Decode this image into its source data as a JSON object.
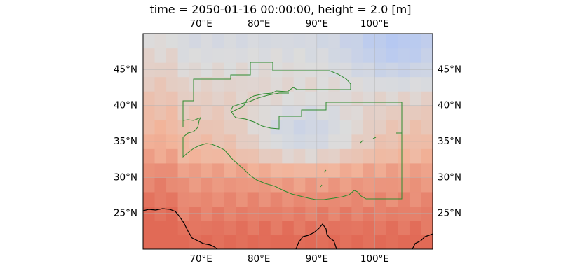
{
  "title": "time = 2050-01-16 00:00:00, height = 2.0 [m]",
  "map": {
    "extent_lon": [
      60,
      110
    ],
    "extent_lat": [
      20,
      50
    ],
    "grid_lon_step": 2.5,
    "grid_lat_step": 2.5,
    "gridlines": true,
    "coastline_color": "#000000",
    "boundary_color": "#2e8b2e",
    "colormap": "coolwarm",
    "colors": {
      "cold": "#9ebcff",
      "neutral": "#dcdcdc",
      "warm_light": "#f2b49a",
      "warm_dark": "#e16a56"
    }
  },
  "axes": {
    "lon_ticks": [
      {
        "value": 70,
        "label": "70°E"
      },
      {
        "value": 80,
        "label": "80°E"
      },
      {
        "value": 90,
        "label": "90°E"
      },
      {
        "value": 100,
        "label": "100°E"
      }
    ],
    "lat_ticks": [
      {
        "value": 45,
        "label": "45°N"
      },
      {
        "value": 40,
        "label": "40°N"
      },
      {
        "value": 35,
        "label": "35°N"
      },
      {
        "value": 30,
        "label": "30°N"
      },
      {
        "value": 25,
        "label": "25°N"
      }
    ]
  }
}
